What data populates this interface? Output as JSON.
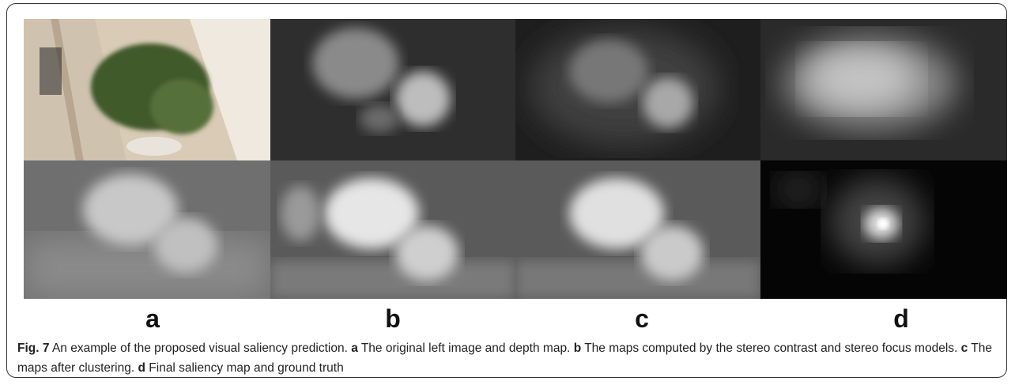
{
  "figure": {
    "panel_labels": [
      "a",
      "b",
      "c",
      "d"
    ],
    "caption": {
      "label": "Fig. 7",
      "text": "An example of the proposed visual saliency prediction.",
      "parts": [
        {
          "label": "a",
          "text": "The original left image and depth map."
        },
        {
          "label": "b",
          "text": "The maps computed by the stereo contrast and stereo focus models."
        },
        {
          "label": "c",
          "text": "The maps after clustering."
        },
        {
          "label": "d",
          "text": "Final saliency map and ground truth"
        }
      ]
    }
  }
}
